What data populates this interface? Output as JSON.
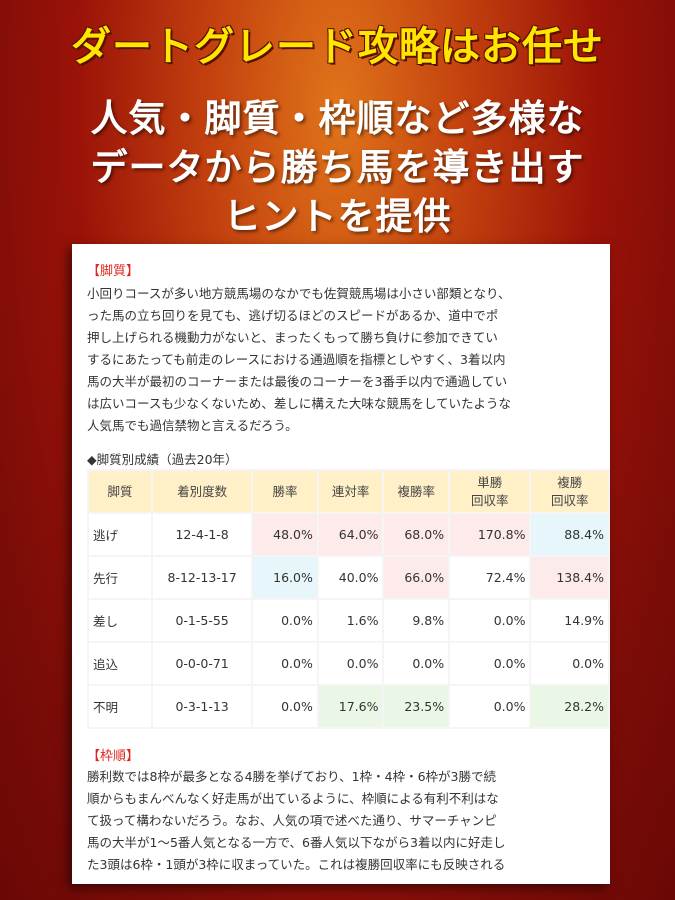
{
  "headline": "ダートグレード攻略はお任せ",
  "sub_lines": [
    "人気・脚質・枠順など多様な",
    "データから勝ち馬を導き出す",
    "ヒントを提供"
  ],
  "section1": {
    "heading": "【脚質】",
    "lines": [
      "小回りコースが多い地方競馬場のなかでも佐賀競馬場は小さい部類となり、",
      "った馬の立ち回りを見ても、逃げ切るほどのスピードがあるか、道中でポ",
      "押し上げられる機動力がないと、まったくもって勝ち負けに参加できてい",
      "するにあたっても前走のレースにおける通過順を指標としやすく、3着以内",
      "馬の大半が最初のコーナーまたは最後のコーナーを3番手以内で通過してい",
      "は広いコースも少なくないため、差しに構えた大味な競馬をしていたような",
      "人気馬でも過信禁物と言えるだろう。"
    ]
  },
  "table": {
    "caption": "◆脚質別成績（過去20年）",
    "headers": [
      "脚質",
      "着別度数",
      "勝率",
      "連対率",
      "複勝率",
      "単勝\n回収率",
      "複勝\n回収率"
    ],
    "rows": [
      [
        "逃げ",
        "12-4-1-8",
        "48.0%",
        "64.0%",
        "68.0%",
        "170.8%",
        "88.4%"
      ],
      [
        "先行",
        "8-12-13-17",
        "16.0%",
        "40.0%",
        "66.0%",
        "72.4%",
        "138.4%"
      ],
      [
        "差し",
        "0-1-5-55",
        "0.0%",
        "1.6%",
        "9.8%",
        "0.0%",
        "14.9%"
      ],
      [
        "追込",
        "0-0-0-71",
        "0.0%",
        "0.0%",
        "0.0%",
        "0.0%",
        "0.0%"
      ],
      [
        "不明",
        "0-3-1-13",
        "0.0%",
        "17.6%",
        "23.5%",
        "0.0%",
        "28.2%"
      ]
    ],
    "highlights": [
      [
        0,
        2,
        "pink"
      ],
      [
        0,
        3,
        "pink"
      ],
      [
        0,
        4,
        "pink"
      ],
      [
        0,
        5,
        "pink"
      ],
      [
        0,
        6,
        "blue"
      ],
      [
        1,
        2,
        "blue"
      ],
      [
        1,
        4,
        "pink"
      ],
      [
        1,
        6,
        "pink"
      ],
      [
        4,
        3,
        "green"
      ],
      [
        4,
        4,
        "green"
      ],
      [
        4,
        6,
        "green"
      ]
    ],
    "colors": {
      "header_bg": "#fff0c8",
      "pink": "#fdeaea",
      "blue": "#e6f6fa",
      "green": "#eaf7e6"
    }
  },
  "section2": {
    "heading": "【枠順】",
    "lines": [
      "勝利数では8枠が最多となる4勝を挙げており、1枠・4枠・6枠が3勝で続",
      "順からもまんべんなく好走馬が出ているように、枠順による有利不利はな",
      "て扱って構わないだろう。なお、人気の項で述べた通り、サマーチャンピ",
      "馬の大半が1〜5番人気となる一方で、6番人気以下ながら3着以内に好走し",
      "た3頭は6枠・1頭が3枠に収まっていた。これは複勝回収率にも反映される"
    ]
  },
  "colors": {
    "headline": "#ffe500",
    "section_heading": "#e0251d"
  }
}
